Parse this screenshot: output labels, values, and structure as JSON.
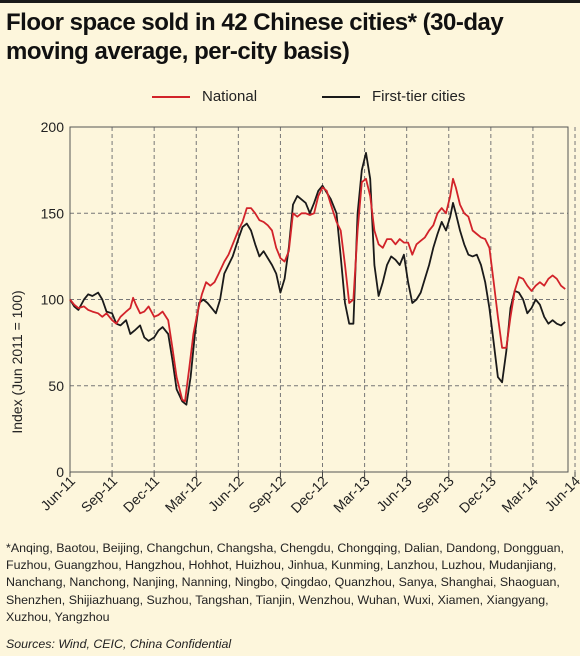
{
  "title": "Floor space sold in 42 Chinese cities* (30-day moving average, per-city basis)",
  "footnote": "*Anqing, Baotou, Beijing, Changchun, Changsha, Chengdu, Chongqing, Dalian, Dandong, Dongguan, Fuzhou, Guangzhou, Hangzhou, Hohhot, Huizhou, Jinhua, Kunming, Lanzhou, Luzhou, Mudanjiang, Nanchang, Nanchong, Nanjing, Nanning, Ningbo, Qingdao, Quanzhou, Sanya, Shanghai, Shaoguan, Shenzhen, Shijiazhuang, Suzhou, Tangshan, Tianjin, Wenzhou, Wuhan, Wuxi, Xiamen, Xiangyang, Xuzhou, Yangzhou",
  "sources": "Sources: Wind, CEIC, China Confidential",
  "chart_data": {
    "type": "line",
    "title": "Floor space sold in 42 Chinese cities* (30-day moving average, per-city basis)",
    "xlabel": "",
    "ylabel": "Index (Jun 2011 = 100)",
    "ylim": [
      0,
      200
    ],
    "yticks": [
      0,
      50,
      100,
      150,
      200
    ],
    "x_ticks": [
      "Jun-11",
      "Sep-11",
      "Dec-11",
      "Mar-12",
      "Jun-12",
      "Sep-12",
      "Dec-12",
      "Mar-13",
      "Jun-13",
      "Sep-13",
      "Dec-13",
      "Mar-14",
      "Jun-14"
    ],
    "grid": true,
    "legend_position": "top",
    "x_unit": "months since Jun-11",
    "series": [
      {
        "name": "National",
        "color": "#d2232a",
        "points": [
          [
            0,
            100
          ],
          [
            0.3,
            97
          ],
          [
            0.6,
            95
          ],
          [
            1,
            96
          ],
          [
            1.3,
            94
          ],
          [
            1.6,
            93
          ],
          [
            2,
            92
          ],
          [
            2.3,
            90
          ],
          [
            2.6,
            92
          ],
          [
            3,
            88
          ],
          [
            3.3,
            86
          ],
          [
            3.6,
            90
          ],
          [
            4,
            93
          ],
          [
            4.3,
            95
          ],
          [
            4.5,
            101
          ],
          [
            4.7,
            97
          ],
          [
            5,
            92
          ],
          [
            5.3,
            93
          ],
          [
            5.6,
            96
          ],
          [
            6,
            90
          ],
          [
            6.3,
            91
          ],
          [
            6.6,
            93
          ],
          [
            7,
            88
          ],
          [
            7.3,
            72
          ],
          [
            7.6,
            55
          ],
          [
            8,
            42
          ],
          [
            8.2,
            41
          ],
          [
            8.5,
            60
          ],
          [
            8.8,
            80
          ],
          [
            9.1,
            93
          ],
          [
            9.4,
            103
          ],
          [
            9.7,
            110
          ],
          [
            10,
            108
          ],
          [
            10.3,
            110
          ],
          [
            10.6,
            115
          ],
          [
            11,
            122
          ],
          [
            11.3,
            126
          ],
          [
            11.6,
            132
          ],
          [
            12,
            140
          ],
          [
            12.3,
            145
          ],
          [
            12.6,
            153
          ],
          [
            12.9,
            153
          ],
          [
            13.2,
            150
          ],
          [
            13.5,
            146
          ],
          [
            13.8,
            145
          ],
          [
            14.1,
            143
          ],
          [
            14.4,
            140
          ],
          [
            14.7,
            130
          ],
          [
            15,
            124
          ],
          [
            15.3,
            122
          ],
          [
            15.6,
            128
          ],
          [
            15.9,
            150
          ],
          [
            16.2,
            148
          ],
          [
            16.5,
            150
          ],
          [
            16.8,
            150
          ],
          [
            17.1,
            149
          ],
          [
            17.4,
            150
          ],
          [
            17.7,
            160
          ],
          [
            18,
            165
          ],
          [
            18.3,
            163
          ],
          [
            18.6,
            155
          ],
          [
            19,
            145
          ],
          [
            19.3,
            140
          ],
          [
            19.6,
            120
          ],
          [
            19.9,
            98
          ],
          [
            20.2,
            100
          ],
          [
            20.5,
            140
          ],
          [
            20.8,
            168
          ],
          [
            21.1,
            170
          ],
          [
            21.4,
            160
          ],
          [
            21.7,
            140
          ],
          [
            22,
            132
          ],
          [
            22.3,
            130
          ],
          [
            22.6,
            135
          ],
          [
            22.9,
            135
          ],
          [
            23.2,
            132
          ],
          [
            23.5,
            135
          ],
          [
            23.8,
            133
          ],
          [
            24.1,
            133
          ],
          [
            24.4,
            126
          ],
          [
            24.7,
            132
          ],
          [
            25,
            134
          ],
          [
            25.3,
            136
          ],
          [
            25.6,
            140
          ],
          [
            25.9,
            143
          ],
          [
            26.2,
            150
          ],
          [
            26.5,
            153
          ],
          [
            26.8,
            150
          ],
          [
            27.1,
            160
          ],
          [
            27.3,
            170
          ],
          [
            27.5,
            165
          ],
          [
            27.8,
            155
          ],
          [
            28.1,
            150
          ],
          [
            28.4,
            148
          ],
          [
            28.7,
            140
          ],
          [
            29,
            138
          ],
          [
            29.3,
            136
          ],
          [
            29.6,
            135
          ],
          [
            29.9,
            130
          ],
          [
            30.2,
            110
          ],
          [
            30.5,
            90
          ],
          [
            30.8,
            72
          ],
          [
            31.1,
            72
          ],
          [
            31.4,
            90
          ],
          [
            31.7,
            105
          ],
          [
            32,
            113
          ],
          [
            32.3,
            112
          ],
          [
            32.6,
            108
          ],
          [
            32.9,
            105
          ],
          [
            33.2,
            108
          ],
          [
            33.5,
            110
          ],
          [
            33.8,
            108
          ],
          [
            34.1,
            112
          ],
          [
            34.4,
            114
          ],
          [
            34.7,
            112
          ],
          [
            35,
            108
          ],
          [
            35.3,
            106
          ]
        ]
      },
      {
        "name": "First-tier cities",
        "color": "#1a1a1a",
        "points": [
          [
            0,
            100
          ],
          [
            0.3,
            96
          ],
          [
            0.6,
            94
          ],
          [
            1,
            100
          ],
          [
            1.3,
            103
          ],
          [
            1.6,
            102
          ],
          [
            2,
            104
          ],
          [
            2.3,
            100
          ],
          [
            2.6,
            93
          ],
          [
            3,
            92
          ],
          [
            3.3,
            86
          ],
          [
            3.6,
            85
          ],
          [
            4,
            88
          ],
          [
            4.3,
            80
          ],
          [
            4.6,
            82
          ],
          [
            5,
            85
          ],
          [
            5.3,
            78
          ],
          [
            5.6,
            76
          ],
          [
            6,
            78
          ],
          [
            6.3,
            82
          ],
          [
            6.6,
            84
          ],
          [
            7,
            80
          ],
          [
            7.3,
            65
          ],
          [
            7.6,
            48
          ],
          [
            8,
            41
          ],
          [
            8.3,
            39
          ],
          [
            8.6,
            55
          ],
          [
            8.9,
            80
          ],
          [
            9.2,
            98
          ],
          [
            9.5,
            100
          ],
          [
            9.8,
            98
          ],
          [
            10.1,
            95
          ],
          [
            10.4,
            92
          ],
          [
            10.7,
            100
          ],
          [
            11,
            115
          ],
          [
            11.3,
            120
          ],
          [
            11.6,
            125
          ],
          [
            12,
            135
          ],
          [
            12.3,
            142
          ],
          [
            12.6,
            144
          ],
          [
            12.9,
            140
          ],
          [
            13.2,
            132
          ],
          [
            13.5,
            125
          ],
          [
            13.8,
            128
          ],
          [
            14.1,
            124
          ],
          [
            14.4,
            120
          ],
          [
            14.7,
            115
          ],
          [
            15,
            104
          ],
          [
            15.3,
            112
          ],
          [
            15.6,
            130
          ],
          [
            15.9,
            155
          ],
          [
            16.2,
            160
          ],
          [
            16.5,
            158
          ],
          [
            16.8,
            156
          ],
          [
            17.1,
            150
          ],
          [
            17.4,
            156
          ],
          [
            17.7,
            163
          ],
          [
            18,
            166
          ],
          [
            18.3,
            162
          ],
          [
            18.6,
            158
          ],
          [
            19,
            150
          ],
          [
            19.3,
            125
          ],
          [
            19.6,
            98
          ],
          [
            19.9,
            86
          ],
          [
            20.2,
            86
          ],
          [
            20.5,
            150
          ],
          [
            20.8,
            175
          ],
          [
            21.1,
            185
          ],
          [
            21.4,
            170
          ],
          [
            21.7,
            120
          ],
          [
            22,
            102
          ],
          [
            22.3,
            110
          ],
          [
            22.6,
            120
          ],
          [
            22.9,
            125
          ],
          [
            23.2,
            123
          ],
          [
            23.5,
            120
          ],
          [
            23.8,
            126
          ],
          [
            24.1,
            110
          ],
          [
            24.4,
            98
          ],
          [
            24.7,
            100
          ],
          [
            25,
            104
          ],
          [
            25.3,
            112
          ],
          [
            25.6,
            120
          ],
          [
            25.9,
            130
          ],
          [
            26.2,
            138
          ],
          [
            26.5,
            145
          ],
          [
            26.8,
            140
          ],
          [
            27.1,
            148
          ],
          [
            27.3,
            156
          ],
          [
            27.5,
            150
          ],
          [
            27.8,
            140
          ],
          [
            28.1,
            132
          ],
          [
            28.4,
            126
          ],
          [
            28.7,
            125
          ],
          [
            29,
            126
          ],
          [
            29.3,
            120
          ],
          [
            29.6,
            110
          ],
          [
            29.9,
            95
          ],
          [
            30.2,
            75
          ],
          [
            30.5,
            55
          ],
          [
            30.8,
            52
          ],
          [
            31.1,
            70
          ],
          [
            31.4,
            95
          ],
          [
            31.7,
            105
          ],
          [
            32,
            104
          ],
          [
            32.3,
            100
          ],
          [
            32.6,
            92
          ],
          [
            32.9,
            95
          ],
          [
            33.2,
            100
          ],
          [
            33.5,
            97
          ],
          [
            33.8,
            90
          ],
          [
            34.1,
            86
          ],
          [
            34.4,
            88
          ],
          [
            34.7,
            86
          ],
          [
            35,
            85
          ],
          [
            35.3,
            87
          ]
        ]
      }
    ]
  }
}
